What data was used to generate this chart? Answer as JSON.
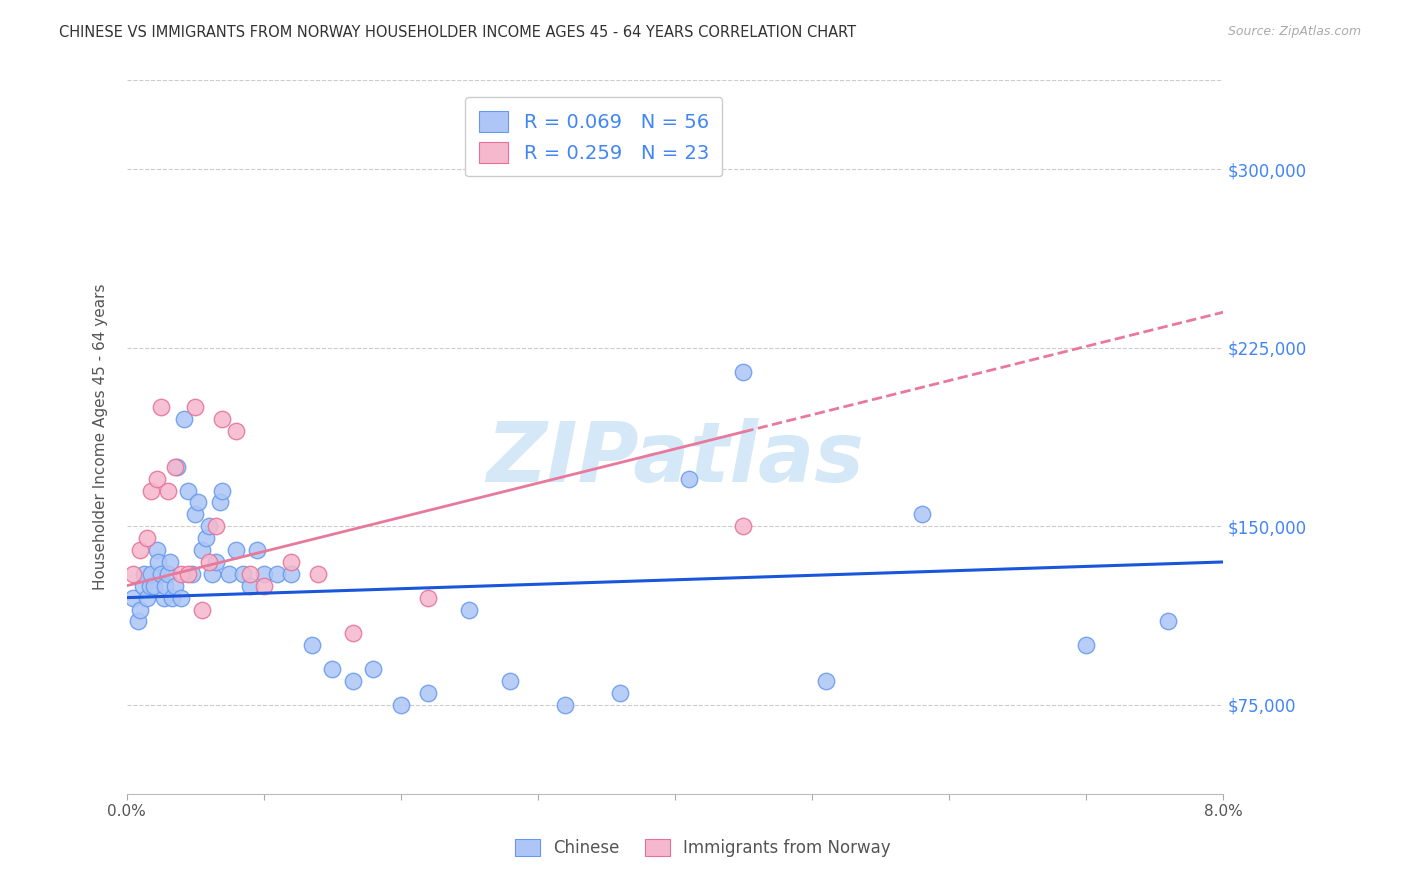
{
  "title": "CHINESE VS IMMIGRANTS FROM NORWAY HOUSEHOLDER INCOME AGES 45 - 64 YEARS CORRELATION CHART",
  "source": "Source: ZipAtlas.com",
  "ylabel": "Householder Income Ages 45 - 64 years",
  "xlim": [
    0.0,
    8.0
  ],
  "ylim": [
    37500,
    337500
  ],
  "yticks": [
    75000,
    150000,
    225000,
    300000
  ],
  "ytick_labels": [
    "$75,000",
    "$150,000",
    "$225,000",
    "$300,000"
  ],
  "legend_r1": "0.069",
  "legend_n1": "56",
  "legend_r2": "0.259",
  "legend_n2": "23",
  "legend_label1": "Chinese",
  "legend_label2": "Immigrants from Norway",
  "color_chinese_face": "#adc6f5",
  "color_chinese_edge": "#6699ee",
  "color_norway_face": "#f5b8cc",
  "color_norway_edge": "#e87098",
  "color_line_chinese": "#1a56db",
  "color_line_norway": "#e8799c",
  "watermark": "ZIPatlas",
  "watermark_color": "#d5e8f8",
  "blue_line_y0": 120000,
  "blue_line_y8": 135000,
  "pink_line_y0": 125000,
  "pink_line_y8": 240000,
  "chinese_x": [
    0.05,
    0.08,
    0.1,
    0.12,
    0.13,
    0.15,
    0.17,
    0.18,
    0.2,
    0.22,
    0.23,
    0.25,
    0.27,
    0.28,
    0.3,
    0.32,
    0.33,
    0.35,
    0.37,
    0.4,
    0.42,
    0.45,
    0.48,
    0.5,
    0.52,
    0.55,
    0.58,
    0.6,
    0.62,
    0.65,
    0.68,
    0.7,
    0.75,
    0.8,
    0.85,
    0.9,
    0.95,
    1.0,
    1.1,
    1.2,
    1.35,
    1.5,
    1.65,
    1.8,
    2.0,
    2.2,
    2.5,
    2.8,
    3.2,
    3.6,
    4.1,
    4.5,
    5.1,
    5.8,
    7.0,
    7.6
  ],
  "chinese_y": [
    120000,
    110000,
    115000,
    125000,
    130000,
    120000,
    125000,
    130000,
    125000,
    140000,
    135000,
    130000,
    120000,
    125000,
    130000,
    135000,
    120000,
    125000,
    175000,
    120000,
    195000,
    165000,
    130000,
    155000,
    160000,
    140000,
    145000,
    150000,
    130000,
    135000,
    160000,
    165000,
    130000,
    140000,
    130000,
    125000,
    140000,
    130000,
    130000,
    130000,
    100000,
    90000,
    85000,
    90000,
    75000,
    80000,
    115000,
    85000,
    75000,
    80000,
    170000,
    215000,
    85000,
    155000,
    100000,
    110000
  ],
  "norway_x": [
    0.05,
    0.1,
    0.15,
    0.18,
    0.22,
    0.25,
    0.3,
    0.35,
    0.4,
    0.45,
    0.5,
    0.55,
    0.6,
    0.65,
    0.7,
    0.8,
    0.9,
    1.0,
    1.2,
    1.4,
    1.65,
    2.2,
    4.5
  ],
  "norway_y": [
    130000,
    140000,
    145000,
    165000,
    170000,
    200000,
    165000,
    175000,
    130000,
    130000,
    200000,
    115000,
    135000,
    150000,
    195000,
    190000,
    130000,
    125000,
    135000,
    130000,
    105000,
    120000,
    150000
  ]
}
